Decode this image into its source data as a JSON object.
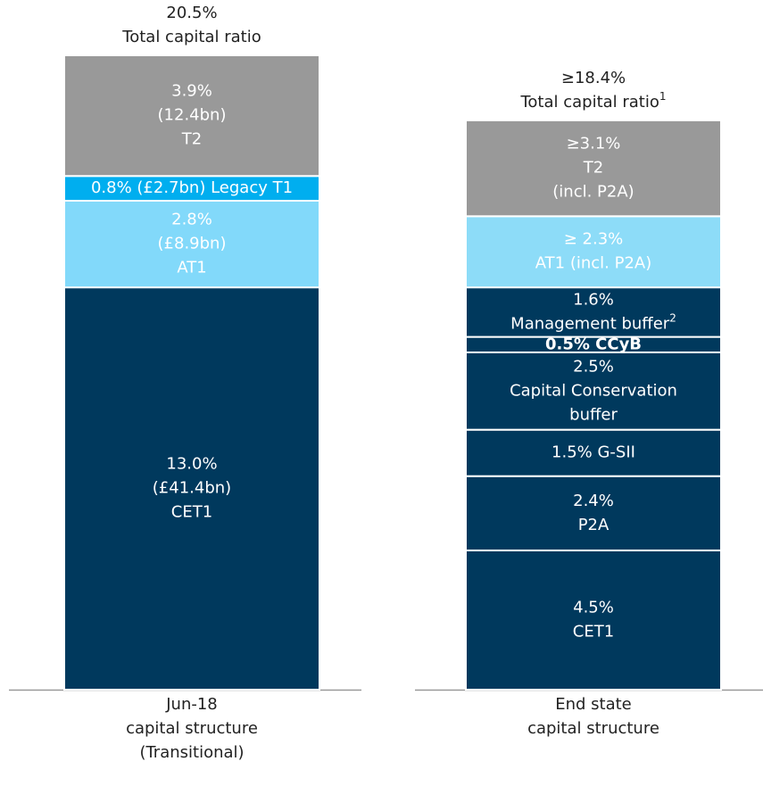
{
  "chart_data": {
    "type": "stacked_bar",
    "categories": [
      [
        "Jun-18",
        "capital structure",
        "(Transitional)"
      ],
      [
        "End state",
        "capital structure"
      ]
    ],
    "stacks": [
      {
        "total": 20.5,
        "total_lines": [
          "20.5%",
          "Total capital ratio"
        ],
        "segments": [
          {
            "value": 13.0,
            "color": "#00395d",
            "lines": [
              "13.0%",
              "(£41.4bn)",
              "CET1"
            ]
          },
          {
            "value": 2.8,
            "color": "#82d9fa",
            "lines": [
              "2.8%",
              "(£8.9bn)",
              "AT1"
            ]
          },
          {
            "value": 0.8,
            "color": "#00aeef",
            "lines": [
              "0.8% (£2.7bn) Legacy T1"
            ]
          },
          {
            "value": 3.9,
            "color": "#999999",
            "lines": [
              "3.9%",
              "(12.4bn)",
              "T2"
            ]
          }
        ]
      },
      {
        "total": 18.4,
        "total_lines": [
          "≥18.4%",
          "Total capital ratio"
        ],
        "total_note": "1",
        "segments": [
          {
            "value": 4.5,
            "color": "#00395d",
            "lines": [
              "4.5%",
              "CET1"
            ]
          },
          {
            "value": 2.4,
            "color": "#00395d",
            "lines": [
              "2.4%",
              "P2A"
            ]
          },
          {
            "value": 1.5,
            "color": "#00395d",
            "lines": [
              "1.5% G-SII"
            ]
          },
          {
            "value": 2.5,
            "color": "#00395d",
            "lines": [
              "2.5%",
              "Capital Conservation",
              "buffer"
            ]
          },
          {
            "value": 0.5,
            "color": "#00395d",
            "lines": [
              "0.5% CCyB"
            ]
          },
          {
            "value": 1.6,
            "color": "#00395d",
            "lines": [
              "1.6%",
              "Management buffer"
            ],
            "note": "2"
          },
          {
            "value": 2.3,
            "color": "#8ddcf8",
            "lines": [
              "≥ 2.3%",
              "AT1 (incl. P2A)"
            ]
          },
          {
            "value": 3.1,
            "color": "#999999",
            "lines": [
              "≥3.1%",
              "T2",
              "(incl. P2A)"
            ]
          }
        ]
      }
    ]
  }
}
